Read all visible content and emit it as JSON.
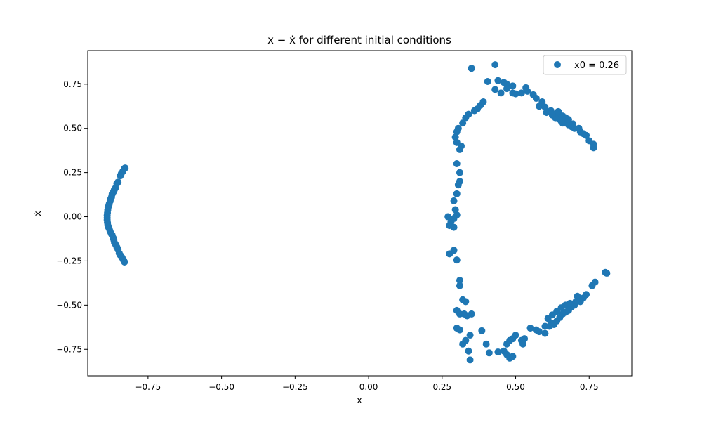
{
  "chart_data": {
    "type": "scatter",
    "title": "x − ẋ for different initial conditions",
    "xlabel": "x",
    "ylabel": "ẋ",
    "xlim": [
      -0.955,
      0.895
    ],
    "ylim": [
      -0.9,
      0.94
    ],
    "xticks": [
      -0.75,
      -0.5,
      -0.25,
      0.0,
      0.25,
      0.5,
      0.75
    ],
    "xtick_labels": [
      "−0.75",
      "−0.50",
      "−0.25",
      "0.00",
      "0.25",
      "0.50",
      "0.75"
    ],
    "yticks": [
      -0.75,
      -0.5,
      -0.25,
      0.0,
      0.25,
      0.5,
      0.75
    ],
    "ytick_labels": [
      "−0.75",
      "−0.50",
      "−0.25",
      "0.00",
      "0.25",
      "0.50",
      "0.75"
    ],
    "grid": false,
    "legend_position": "top-right",
    "series": [
      {
        "name": "x0 = 0.26",
        "color": "#1f77b4",
        "points": [
          [
            -0.828,
            0.276
          ],
          [
            -0.831,
            0.271
          ],
          [
            -0.836,
            0.256
          ],
          [
            -0.841,
            0.244
          ],
          [
            -0.844,
            0.232
          ],
          [
            -0.852,
            0.196
          ],
          [
            -0.856,
            0.188
          ],
          [
            -0.861,
            0.162
          ],
          [
            -0.865,
            0.151
          ],
          [
            -0.867,
            0.142
          ],
          [
            -0.872,
            0.128
          ],
          [
            -0.874,
            0.112
          ],
          [
            -0.877,
            0.101
          ],
          [
            -0.879,
            0.088
          ],
          [
            -0.882,
            0.072
          ],
          [
            -0.884,
            0.061
          ],
          [
            -0.886,
            0.052
          ],
          [
            -0.887,
            0.038
          ],
          [
            -0.888,
            0.022
          ],
          [
            -0.889,
            0.008
          ],
          [
            -0.889,
            -0.006
          ],
          [
            -0.889,
            -0.018
          ],
          [
            -0.888,
            -0.032
          ],
          [
            -0.887,
            -0.046
          ],
          [
            -0.885,
            -0.058
          ],
          [
            -0.882,
            -0.068
          ],
          [
            -0.879,
            -0.082
          ],
          [
            -0.875,
            -0.096
          ],
          [
            -0.872,
            -0.104
          ],
          [
            -0.869,
            -0.118
          ],
          [
            -0.866,
            -0.132
          ],
          [
            -0.864,
            -0.148
          ],
          [
            -0.86,
            -0.158
          ],
          [
            -0.856,
            -0.172
          ],
          [
            -0.852,
            -0.186
          ],
          [
            -0.848,
            -0.206
          ],
          [
            -0.844,
            -0.218
          ],
          [
            -0.838,
            -0.232
          ],
          [
            -0.833,
            -0.246
          ],
          [
            -0.83,
            -0.256
          ],
          [
            0.35,
            0.84
          ],
          [
            0.43,
            0.86
          ],
          [
            0.405,
            0.765
          ],
          [
            0.44,
            0.77
          ],
          [
            0.46,
            0.76
          ],
          [
            0.47,
            0.75
          ],
          [
            0.49,
            0.74
          ],
          [
            0.47,
            0.725
          ],
          [
            0.43,
            0.72
          ],
          [
            0.45,
            0.7
          ],
          [
            0.49,
            0.7
          ],
          [
            0.5,
            0.695
          ],
          [
            0.52,
            0.7
          ],
          [
            0.54,
            0.71
          ],
          [
            0.535,
            0.73
          ],
          [
            0.56,
            0.69
          ],
          [
            0.57,
            0.67
          ],
          [
            0.59,
            0.65
          ],
          [
            0.58,
            0.625
          ],
          [
            0.6,
            0.62
          ],
          [
            0.62,
            0.6
          ],
          [
            0.63,
            0.58
          ],
          [
            0.64,
            0.56
          ],
          [
            0.65,
            0.55
          ],
          [
            0.66,
            0.53
          ],
          [
            0.67,
            0.53
          ],
          [
            0.68,
            0.52
          ],
          [
            0.69,
            0.51
          ],
          [
            0.7,
            0.5
          ],
          [
            0.72,
            0.48
          ],
          [
            0.73,
            0.47
          ],
          [
            0.74,
            0.46
          ],
          [
            0.75,
            0.43
          ],
          [
            0.765,
            0.41
          ],
          [
            0.765,
            0.39
          ],
          [
            0.645,
            0.595
          ],
          [
            0.66,
            0.57
          ],
          [
            0.67,
            0.56
          ],
          [
            0.68,
            0.55
          ],
          [
            0.635,
            0.56
          ],
          [
            0.655,
            0.54
          ],
          [
            0.695,
            0.525
          ],
          [
            0.715,
            0.5
          ],
          [
            0.625,
            0.575
          ],
          [
            0.605,
            0.59
          ],
          [
            0.39,
            0.65
          ],
          [
            0.38,
            0.63
          ],
          [
            0.37,
            0.61
          ],
          [
            0.36,
            0.6
          ],
          [
            0.34,
            0.58
          ],
          [
            0.33,
            0.56
          ],
          [
            0.32,
            0.53
          ],
          [
            0.305,
            0.5
          ],
          [
            0.3,
            0.48
          ],
          [
            0.295,
            0.45
          ],
          [
            0.3,
            0.42
          ],
          [
            0.315,
            0.4
          ],
          [
            0.31,
            0.38
          ],
          [
            0.3,
            0.3
          ],
          [
            0.31,
            0.25
          ],
          [
            0.31,
            0.2
          ],
          [
            0.305,
            0.18
          ],
          [
            0.3,
            0.13
          ],
          [
            0.29,
            0.09
          ],
          [
            0.295,
            0.04
          ],
          [
            0.3,
            0.01
          ],
          [
            0.29,
            -0.01
          ],
          [
            0.28,
            -0.03
          ],
          [
            0.275,
            -0.05
          ],
          [
            0.29,
            -0.06
          ],
          [
            0.27,
            0.0
          ],
          [
            0.275,
            -0.21
          ],
          [
            0.29,
            -0.19
          ],
          [
            0.3,
            -0.245
          ],
          [
            0.31,
            -0.36
          ],
          [
            0.31,
            -0.39
          ],
          [
            0.32,
            -0.47
          ],
          [
            0.33,
            -0.48
          ],
          [
            0.3,
            -0.53
          ],
          [
            0.31,
            -0.55
          ],
          [
            0.325,
            -0.55
          ],
          [
            0.335,
            -0.56
          ],
          [
            0.35,
            -0.55
          ],
          [
            0.345,
            -0.67
          ],
          [
            0.33,
            -0.7
          ],
          [
            0.32,
            -0.72
          ],
          [
            0.34,
            -0.76
          ],
          [
            0.345,
            -0.81
          ],
          [
            0.3,
            -0.63
          ],
          [
            0.31,
            -0.64
          ],
          [
            0.385,
            -0.645
          ],
          [
            0.4,
            -0.72
          ],
          [
            0.41,
            -0.77
          ],
          [
            0.44,
            -0.765
          ],
          [
            0.46,
            -0.76
          ],
          [
            0.47,
            -0.78
          ],
          [
            0.48,
            -0.8
          ],
          [
            0.49,
            -0.79
          ],
          [
            0.47,
            -0.72
          ],
          [
            0.48,
            -0.7
          ],
          [
            0.49,
            -0.69
          ],
          [
            0.5,
            -0.67
          ],
          [
            0.52,
            -0.7
          ],
          [
            0.53,
            -0.69
          ],
          [
            0.525,
            -0.72
          ],
          [
            0.55,
            -0.63
          ],
          [
            0.57,
            -0.64
          ],
          [
            0.58,
            -0.65
          ],
          [
            0.6,
            -0.66
          ],
          [
            0.6,
            -0.62
          ],
          [
            0.62,
            -0.6
          ],
          [
            0.64,
            -0.59
          ],
          [
            0.65,
            -0.57
          ],
          [
            0.66,
            -0.55
          ],
          [
            0.67,
            -0.54
          ],
          [
            0.68,
            -0.53
          ],
          [
            0.69,
            -0.51
          ],
          [
            0.7,
            -0.5
          ],
          [
            0.72,
            -0.48
          ],
          [
            0.73,
            -0.46
          ],
          [
            0.74,
            -0.44
          ],
          [
            0.76,
            -0.39
          ],
          [
            0.77,
            -0.37
          ],
          [
            0.81,
            -0.32
          ],
          [
            0.805,
            -0.315
          ],
          [
            0.61,
            -0.575
          ],
          [
            0.625,
            -0.555
          ],
          [
            0.64,
            -0.535
          ],
          [
            0.655,
            -0.515
          ],
          [
            0.67,
            -0.5
          ],
          [
            0.685,
            -0.49
          ],
          [
            0.705,
            -0.48
          ],
          [
            0.63,
            -0.61
          ],
          [
            0.615,
            -0.62
          ],
          [
            0.71,
            -0.45
          ]
        ]
      }
    ]
  }
}
